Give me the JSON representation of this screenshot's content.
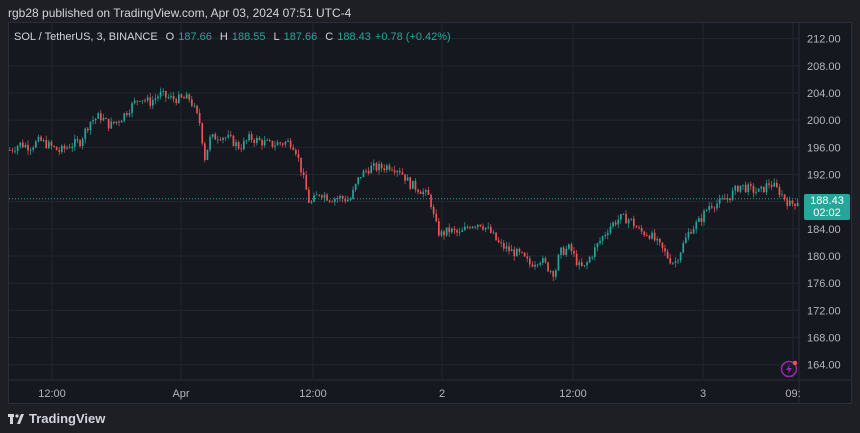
{
  "header": {
    "published_text": "rgb28 published on TradingView.com, Apr 03, 2024 07:51 UTC-4"
  },
  "legend": {
    "symbol": "SOL / TetherUS, 3, BINANCE",
    "open_key": "O",
    "open": "187.66",
    "high_key": "H",
    "high": "188.55",
    "low_key": "L",
    "low": "187.66",
    "close_key": "C",
    "close": "188.43",
    "change": "+0.78 (+0.42%)"
  },
  "price_tag": {
    "price": "188.43",
    "countdown": "02:02"
  },
  "footer": {
    "brand": "TradingView"
  },
  "colors": {
    "up": "#26a69a",
    "down": "#ef5350",
    "accent": "#9c27b0"
  },
  "icons": [
    "tradingview-logo-icon",
    "flash-icon"
  ],
  "chart_data": {
    "type": "candlestick",
    "y_ticks": [
      "212.00",
      "208.00",
      "204.00",
      "200.00",
      "196.00",
      "192.00",
      "188.00",
      "184.00",
      "180.00",
      "176.00",
      "172.00",
      "168.00",
      "164.00"
    ],
    "ylim": [
      161.9,
      214.3
    ],
    "x_ticks": [
      "12:00",
      "Apr",
      "12:00",
      "2",
      "12:00",
      "3",
      "09:"
    ],
    "last_price": 188.43,
    "grid": true,
    "approx_path": [
      [
        0,
        195.6
      ],
      [
        10,
        196.5
      ],
      [
        20,
        196.1
      ],
      [
        30,
        197.0
      ],
      [
        40,
        196.2
      ],
      [
        50,
        195.4
      ],
      [
        60,
        196.3
      ],
      [
        70,
        196.8
      ],
      [
        80,
        199.8
      ],
      [
        90,
        200.6
      ],
      [
        100,
        199.2
      ],
      [
        110,
        200.1
      ],
      [
        120,
        201.8
      ],
      [
        130,
        203.4
      ],
      [
        140,
        202.6
      ],
      [
        150,
        203.8
      ],
      [
        160,
        203.2
      ],
      [
        170,
        203.1
      ],
      [
        180,
        203.2
      ],
      [
        190,
        199.6
      ],
      [
        195,
        194.5
      ],
      [
        200,
        197.2
      ],
      [
        210,
        197.8
      ],
      [
        220,
        197.2
      ],
      [
        230,
        196.0
      ],
      [
        240,
        197.4
      ],
      [
        250,
        196.9
      ],
      [
        260,
        196.4
      ],
      [
        270,
        196.6
      ],
      [
        280,
        196.8
      ],
      [
        285,
        196.1
      ],
      [
        290,
        193.5
      ],
      [
        300,
        187.5
      ],
      [
        310,
        189.4
      ],
      [
        320,
        188.5
      ],
      [
        330,
        188.6
      ],
      [
        340,
        188.2
      ],
      [
        350,
        191.8
      ],
      [
        360,
        193.0
      ],
      [
        370,
        193.0
      ],
      [
        380,
        193.3
      ],
      [
        390,
        192.7
      ],
      [
        400,
        190.6
      ],
      [
        410,
        189.8
      ],
      [
        420,
        188.6
      ],
      [
        425,
        185.0
      ],
      [
        430,
        183.1
      ],
      [
        440,
        183.8
      ],
      [
        450,
        183.2
      ],
      [
        460,
        184.6
      ],
      [
        470,
        184.9
      ],
      [
        480,
        183.6
      ],
      [
        490,
        181.6
      ],
      [
        500,
        180.8
      ],
      [
        510,
        180.2
      ],
      [
        520,
        178.8
      ],
      [
        530,
        179.6
      ],
      [
        540,
        178.0
      ],
      [
        545,
        177.5
      ],
      [
        550,
        180.5
      ],
      [
        560,
        181.2
      ],
      [
        570,
        178.3
      ],
      [
        575,
        178.3
      ],
      [
        580,
        179.8
      ],
      [
        590,
        182.2
      ],
      [
        600,
        184.4
      ],
      [
        610,
        185.6
      ],
      [
        620,
        185.4
      ],
      [
        630,
        183.6
      ],
      [
        640,
        183.2
      ],
      [
        650,
        181.4
      ],
      [
        660,
        179.5
      ],
      [
        665,
        179.0
      ],
      [
        670,
        180.6
      ],
      [
        680,
        183.8
      ],
      [
        690,
        185.2
      ],
      [
        700,
        187.6
      ],
      [
        710,
        187.8
      ],
      [
        720,
        188.8
      ],
      [
        730,
        190.4
      ],
      [
        740,
        189.8
      ],
      [
        750,
        189.4
      ],
      [
        760,
        190.8
      ],
      [
        770,
        189.4
      ],
      [
        780,
        187.6
      ],
      [
        785,
        187.9
      ],
      [
        790,
        188.43
      ]
    ]
  }
}
